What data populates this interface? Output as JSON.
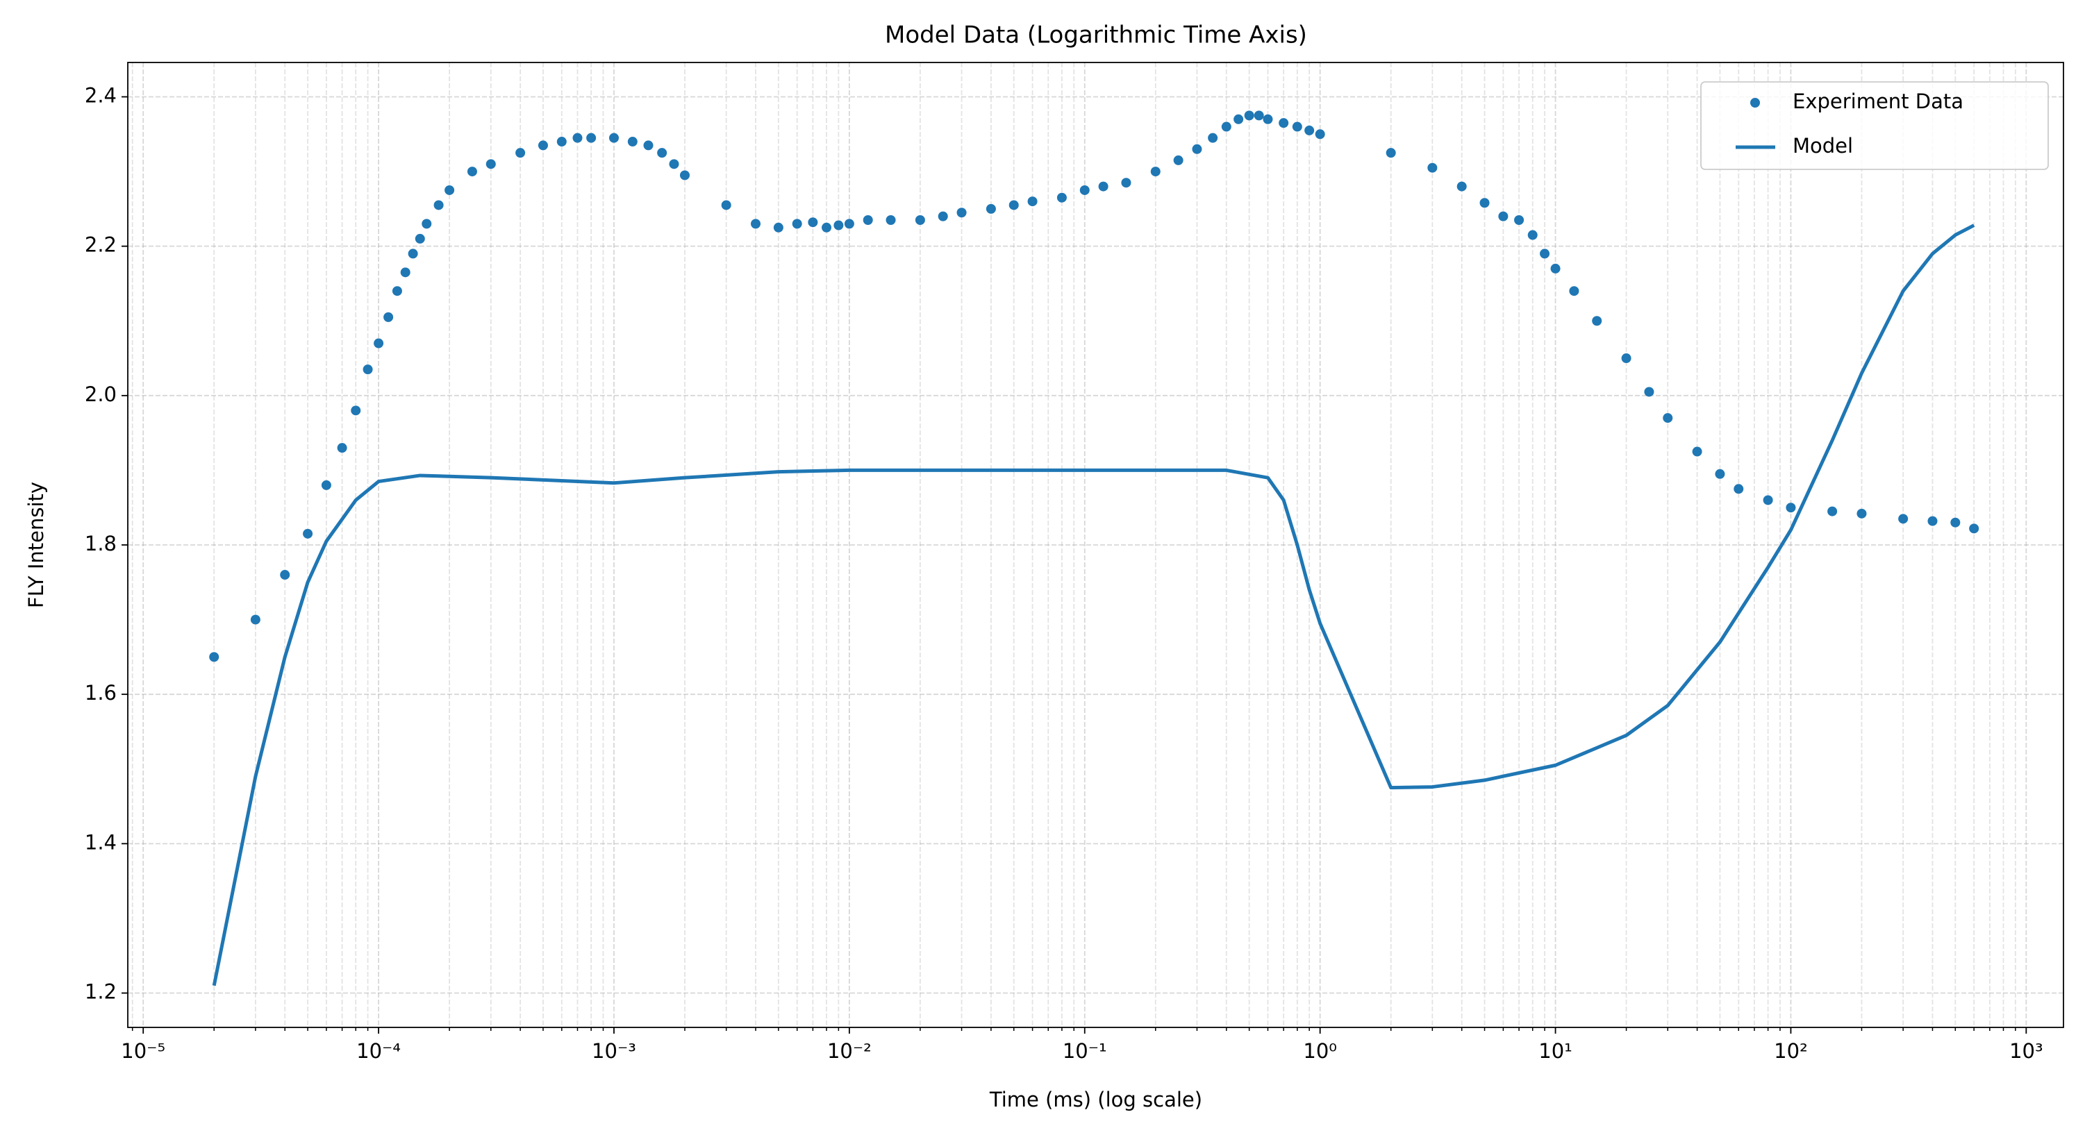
{
  "chart_data": {
    "type": "scatter-line",
    "title": "Model Data (Logarithmic Time Axis)",
    "x_label": "Time (ms) (log scale)",
    "y_label": "FLY Intensity",
    "xscale": "log",
    "grid": true,
    "minor_grid": true,
    "legend": "upper right",
    "xlim": [
      8.6e-06,
      1440
    ],
    "ylim": [
      1.154,
      2.446
    ],
    "xticks": [
      {
        "value": 1e-05,
        "label": "10⁻⁵"
      },
      {
        "value": 0.0001,
        "label": "10⁻⁴"
      },
      {
        "value": 0.001,
        "label": "10⁻³"
      },
      {
        "value": 0.01,
        "label": "10⁻²"
      },
      {
        "value": 0.1,
        "label": "10⁻¹"
      },
      {
        "value": 1,
        "label": "10⁰"
      },
      {
        "value": 10,
        "label": "10¹"
      },
      {
        "value": 100,
        "label": "10²"
      },
      {
        "value": 1000,
        "label": "10³"
      }
    ],
    "yticks": [
      1.2,
      1.4,
      1.6,
      1.8,
      {
        "value": 2,
        "label": "2.0"
      },
      2.2,
      2.4
    ],
    "series": [
      {
        "name": "Experiment Data",
        "kind": "scatter",
        "color": "#1f77b4",
        "x": [
          2e-05,
          3e-05,
          4e-05,
          5e-05,
          6e-05,
          7e-05,
          8e-05,
          9e-05,
          0.0001,
          0.00011,
          0.00012,
          0.00013,
          0.00014,
          0.00015,
          0.00016,
          0.00018,
          0.0002,
          0.00025,
          0.0003,
          0.0004,
          0.0005,
          0.0006,
          0.0007,
          0.0008,
          0.001,
          0.0012,
          0.0014,
          0.0016,
          0.0018,
          0.002,
          0.003,
          0.004,
          0.005,
          0.006,
          0.007,
          0.008,
          0.009,
          0.01,
          0.012,
          0.015,
          0.02,
          0.025,
          0.03,
          0.04,
          0.05,
          0.06,
          0.08,
          0.1,
          0.12,
          0.15,
          0.2,
          0.25,
          0.3,
          0.35,
          0.4,
          0.45,
          0.5,
          0.55,
          0.6,
          0.7,
          0.8,
          0.9,
          1,
          2,
          3,
          4,
          5,
          6,
          7,
          8,
          9,
          10,
          12,
          15,
          20,
          25,
          30,
          40,
          50,
          60,
          80,
          100,
          150,
          200,
          300,
          400,
          500,
          600
        ],
        "values": [
          1.65,
          1.7,
          1.76,
          1.815,
          1.88,
          1.93,
          1.98,
          2.035,
          2.07,
          2.105,
          2.14,
          2.165,
          2.19,
          2.21,
          2.23,
          2.255,
          2.275,
          2.3,
          2.31,
          2.325,
          2.335,
          2.34,
          2.345,
          2.345,
          2.345,
          2.34,
          2.335,
          2.325,
          2.31,
          2.295,
          2.255,
          2.23,
          2.225,
          2.23,
          2.232,
          2.225,
          2.228,
          2.23,
          2.235,
          2.235,
          2.235,
          2.24,
          2.245,
          2.25,
          2.255,
          2.26,
          2.265,
          2.275,
          2.28,
          2.285,
          2.3,
          2.315,
          2.33,
          2.345,
          2.36,
          2.37,
          2.375,
          2.375,
          2.37,
          2.365,
          2.36,
          2.355,
          2.35,
          2.325,
          2.305,
          2.28,
          2.258,
          2.24,
          2.235,
          2.215,
          2.19,
          2.17,
          2.14,
          2.1,
          2.05,
          2.005,
          1.97,
          1.925,
          1.895,
          1.875,
          1.86,
          1.85,
          1.845,
          1.842,
          1.835,
          1.832,
          1.83,
          1.822
        ]
      },
      {
        "name": "Model",
        "kind": "line",
        "color": "#1f77b4",
        "x": [
          2e-05,
          3e-05,
          4e-05,
          5e-05,
          6e-05,
          8e-05,
          0.0001,
          0.00015,
          0.0003,
          0.001,
          0.002,
          0.005,
          0.01,
          0.1,
          0.4,
          0.6,
          0.7,
          0.8,
          0.9,
          1,
          2,
          3,
          5,
          10,
          20,
          30,
          50,
          80,
          100,
          150,
          200,
          300,
          400,
          500,
          600
        ],
        "values": [
          1.21,
          1.49,
          1.65,
          1.75,
          1.805,
          1.86,
          1.885,
          1.893,
          1.89,
          1.883,
          1.89,
          1.898,
          1.9,
          1.9,
          1.9,
          1.89,
          1.86,
          1.8,
          1.74,
          1.695,
          1.475,
          1.476,
          1.485,
          1.505,
          1.545,
          1.585,
          1.67,
          1.77,
          1.82,
          1.94,
          2.03,
          2.14,
          2.19,
          2.215,
          2.228
        ]
      }
    ]
  }
}
